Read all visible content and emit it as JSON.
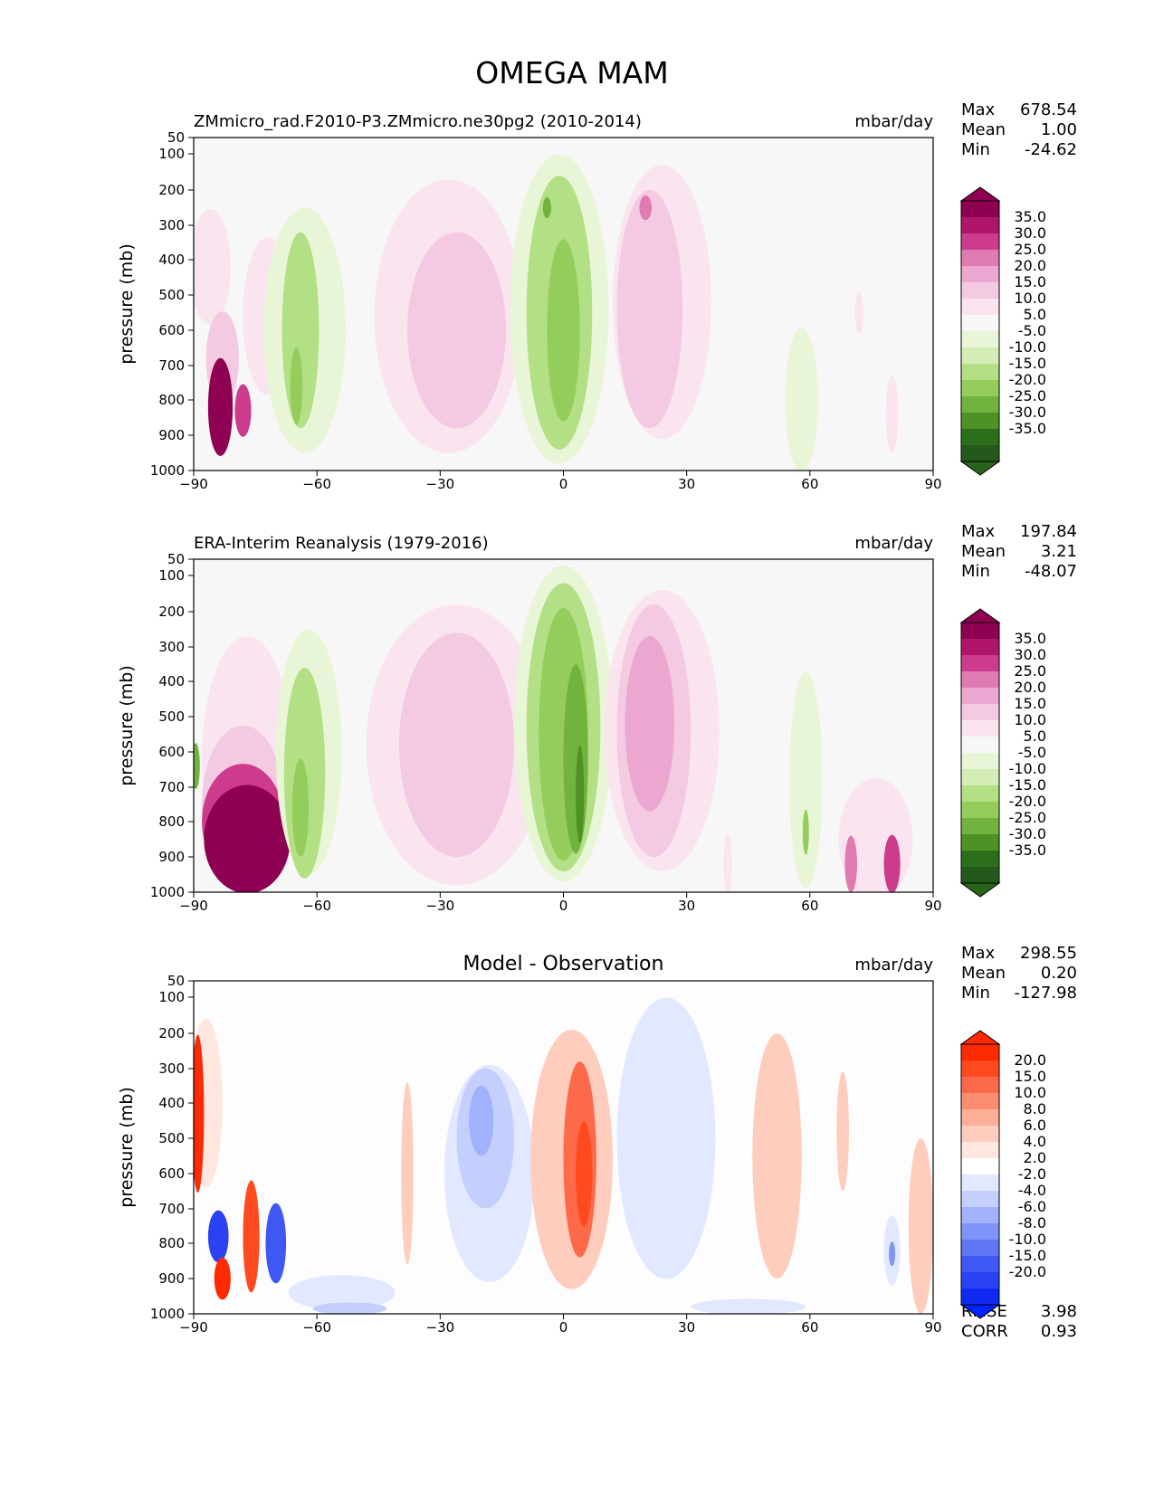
{
  "figure_title": "OMEGA MAM",
  "chart_data": [
    {
      "type": "heatmap",
      "title_left": "ZMmicro_rad.F2010-P3.ZMmicro.ne30pg2 (2010-2014)",
      "title_center": "",
      "units": "mbar/day",
      "ylabel": "pressure (mb)",
      "xlim": [
        -90,
        90
      ],
      "x_ticks": [
        "−90",
        "−60",
        "−30",
        "0",
        "30",
        "60",
        "90"
      ],
      "x_tick_values": [
        -90,
        -60,
        -30,
        0,
        30,
        60,
        90
      ],
      "y_ticks": [
        "50",
        "100",
        "200",
        "300",
        "400",
        "500",
        "600",
        "700",
        "800",
        "900",
        "1000"
      ],
      "y_tick_values": [
        50,
        100,
        200,
        300,
        400,
        500,
        600,
        700,
        800,
        900,
        1000
      ],
      "stats": {
        "max_label": "Max",
        "max": "678.54",
        "mean_label": "Mean",
        "mean": "1.00",
        "min_label": "Min",
        "min": "-24.62"
      },
      "colorbar": {
        "labels": [
          "35.0",
          "30.0",
          "25.0",
          "20.0",
          "15.0",
          "10.0",
          "5.0",
          "-5.0",
          "-10.0",
          "-15.0",
          "-20.0",
          "-25.0",
          "-30.0",
          "-35.0"
        ],
        "colors": [
          "#8e0152",
          "#b0156c",
          "#cd3c8c",
          "#e07bb2",
          "#eba7cf",
          "#f4c9e2",
          "#fae4f0",
          "#f7f7f7",
          "#e9f5d7",
          "#d4ecb5",
          "#b3df85",
          "#94cd5c",
          "#72b23e",
          "#4e9226",
          "#2d6e1b",
          "#23591a"
        ],
        "top_color": "#8e0152",
        "bottom_color": "#276419"
      },
      "contours": [
        {
          "color": "#fae4f0",
          "x": -86,
          "p": 420,
          "w": 10,
          "h": 330
        },
        {
          "color": "#fae4f0",
          "x": -72,
          "p": 560,
          "w": 12,
          "h": 450
        },
        {
          "color": "#f4c9e2",
          "x": -83,
          "p": 680,
          "w": 8,
          "h": 270
        },
        {
          "color": "#8e0152",
          "x": -83.5,
          "p": 820,
          "w": 6,
          "h": 280
        },
        {
          "color": "#cd3c8c",
          "x": -78,
          "p": 830,
          "w": 4,
          "h": 150
        },
        {
          "color": "#e9f5d7",
          "x": -63,
          "p": 600,
          "w": 20,
          "h": 700
        },
        {
          "color": "#b3df85",
          "x": -64,
          "p": 600,
          "w": 9,
          "h": 560
        },
        {
          "color": "#94cd5c",
          "x": -65,
          "p": 760,
          "w": 3,
          "h": 220
        },
        {
          "color": "#fae4f0",
          "x": -28,
          "p": 560,
          "w": 36,
          "h": 780
        },
        {
          "color": "#f4c9e2",
          "x": -26,
          "p": 600,
          "w": 24,
          "h": 560
        },
        {
          "color": "#e9f5d7",
          "x": -1,
          "p": 540,
          "w": 24,
          "h": 880
        },
        {
          "color": "#b3df85",
          "x": -1,
          "p": 550,
          "w": 16,
          "h": 780
        },
        {
          "color": "#94cd5c",
          "x": 0,
          "p": 600,
          "w": 8,
          "h": 520
        },
        {
          "color": "#72b23e",
          "x": -4,
          "p": 250,
          "w": 2,
          "h": 60
        },
        {
          "color": "#fae4f0",
          "x": 24,
          "p": 520,
          "w": 24,
          "h": 780
        },
        {
          "color": "#f4c9e2",
          "x": 21,
          "p": 540,
          "w": 16,
          "h": 680
        },
        {
          "color": "#e07bb2",
          "x": 20,
          "p": 250,
          "w": 3,
          "h": 70
        },
        {
          "color": "#e9f5d7",
          "x": 58,
          "p": 800,
          "w": 8,
          "h": 420
        },
        {
          "color": "#fae4f0",
          "x": 72,
          "p": 550,
          "w": 2,
          "h": 120
        },
        {
          "color": "#fae4f0",
          "x": 80,
          "p": 840,
          "w": 3,
          "h": 220
        }
      ]
    },
    {
      "type": "heatmap",
      "title_left": "ERA-Interim Reanalysis (1979-2016)",
      "title_center": "",
      "units": "mbar/day",
      "ylabel": "pressure (mb)",
      "xlim": [
        -90,
        90
      ],
      "x_ticks": [
        "−90",
        "−60",
        "−30",
        "0",
        "30",
        "60",
        "90"
      ],
      "x_tick_values": [
        -90,
        -60,
        -30,
        0,
        30,
        60,
        90
      ],
      "y_ticks": [
        "50",
        "100",
        "200",
        "300",
        "400",
        "500",
        "600",
        "700",
        "800",
        "900",
        "1000"
      ],
      "y_tick_values": [
        50,
        100,
        200,
        300,
        400,
        500,
        600,
        700,
        800,
        900,
        1000
      ],
      "stats": {
        "max_label": "Max",
        "max": "197.84",
        "mean_label": "Mean",
        "mean": "3.21",
        "min_label": "Min",
        "min": "-48.07"
      },
      "colorbar": {
        "labels": [
          "35.0",
          "30.0",
          "25.0",
          "20.0",
          "15.0",
          "10.0",
          "5.0",
          "-5.0",
          "-10.0",
          "-15.0",
          "-20.0",
          "-25.0",
          "-30.0",
          "-35.0"
        ],
        "colors": [
          "#8e0152",
          "#b0156c",
          "#cd3c8c",
          "#e07bb2",
          "#eba7cf",
          "#f4c9e2",
          "#fae4f0",
          "#f7f7f7",
          "#e9f5d7",
          "#d4ecb5",
          "#b3df85",
          "#94cd5c",
          "#72b23e",
          "#4e9226",
          "#2d6e1b",
          "#23591a"
        ],
        "top_color": "#8e0152",
        "bottom_color": "#276419"
      },
      "contours": [
        {
          "color": "#fae4f0",
          "x": -77,
          "p": 620,
          "w": 22,
          "h": 700
        },
        {
          "color": "#f4c9e2",
          "x": -78,
          "p": 750,
          "w": 20,
          "h": 450
        },
        {
          "color": "#cd3c8c",
          "x": -78,
          "p": 800,
          "w": 20,
          "h": 330
        },
        {
          "color": "#8e0152",
          "x": -77,
          "p": 850,
          "w": 21,
          "h": 320
        },
        {
          "color": "#72b23e",
          "x": -89.5,
          "p": 640,
          "w": 2,
          "h": 130
        },
        {
          "color": "#e9f5d7",
          "x": -62,
          "p": 600,
          "w": 16,
          "h": 700
        },
        {
          "color": "#b3df85",
          "x": -63,
          "p": 660,
          "w": 10,
          "h": 600
        },
        {
          "color": "#94cd5c",
          "x": -64,
          "p": 760,
          "w": 4,
          "h": 280
        },
        {
          "color": "#fae4f0",
          "x": -26,
          "p": 580,
          "w": 44,
          "h": 800
        },
        {
          "color": "#f4c9e2",
          "x": -26,
          "p": 580,
          "w": 28,
          "h": 640
        },
        {
          "color": "#e9f5d7",
          "x": 0,
          "p": 520,
          "w": 24,
          "h": 900
        },
        {
          "color": "#b3df85",
          "x": 0,
          "p": 530,
          "w": 18,
          "h": 820
        },
        {
          "color": "#94cd5c",
          "x": 0,
          "p": 550,
          "w": 12,
          "h": 720
        },
        {
          "color": "#72b23e",
          "x": 3,
          "p": 620,
          "w": 6,
          "h": 540
        },
        {
          "color": "#4e9226",
          "x": 4,
          "p": 720,
          "w": 2,
          "h": 280
        },
        {
          "color": "#fae4f0",
          "x": 24,
          "p": 540,
          "w": 28,
          "h": 800
        },
        {
          "color": "#f4c9e2",
          "x": 22,
          "p": 540,
          "w": 18,
          "h": 720
        },
        {
          "color": "#eba7cf",
          "x": 21,
          "p": 520,
          "w": 12,
          "h": 500
        },
        {
          "color": "#e9f5d7",
          "x": 59,
          "p": 680,
          "w": 8,
          "h": 620
        },
        {
          "color": "#94cd5c",
          "x": 59,
          "p": 830,
          "w": 1.5,
          "h": 130
        },
        {
          "color": "#fae4f0",
          "x": 40,
          "p": 920,
          "w": 2,
          "h": 180
        },
        {
          "color": "#fae4f0",
          "x": 76,
          "p": 850,
          "w": 18,
          "h": 400
        },
        {
          "color": "#e07bb2",
          "x": 70,
          "p": 920,
          "w": 3,
          "h": 160
        },
        {
          "color": "#cd3c8c",
          "x": 80,
          "p": 920,
          "w": 4,
          "h": 170
        }
      ]
    },
    {
      "type": "heatmap",
      "title_left": "",
      "title_center": "Model - Observation",
      "units": "mbar/day",
      "ylabel": "pressure (mb)",
      "xlim": [
        -90,
        90
      ],
      "x_ticks": [
        "−90",
        "−60",
        "−30",
        "0",
        "30",
        "60",
        "90"
      ],
      "x_tick_values": [
        -90,
        -60,
        -30,
        0,
        30,
        60,
        90
      ],
      "y_ticks": [
        "50",
        "100",
        "200",
        "300",
        "400",
        "500",
        "600",
        "700",
        "800",
        "900",
        "1000"
      ],
      "y_tick_values": [
        50,
        100,
        200,
        300,
        400,
        500,
        600,
        700,
        800,
        900,
        1000
      ],
      "stats": {
        "max_label": "Max",
        "max": "298.55",
        "mean_label": "Mean",
        "mean": "0.20",
        "min_label": "Min",
        "min": "-127.98"
      },
      "extra_stats": {
        "rmse_label": "RMSE",
        "rmse": "3.98",
        "corr_label": "CORR",
        "corr": "0.93"
      },
      "colorbar": {
        "labels": [
          "20.0",
          "15.0",
          "10.0",
          "8.0",
          "6.0",
          "4.0",
          "2.0",
          "-2.0",
          "-4.0",
          "-6.0",
          "-8.0",
          "-10.0",
          "-15.0",
          "-20.0"
        ],
        "colors": [
          "#ff2a00",
          "#ff4a1f",
          "#fd6a4a",
          "#fc8c70",
          "#fdae96",
          "#fecdbe",
          "#ffe7df",
          "#ffffff",
          "#e2e8ff",
          "#c4cffd",
          "#a2b1fb",
          "#8093f8",
          "#6076f5",
          "#4058f3",
          "#2a42f2",
          "#1029f0"
        ],
        "top_color": "#ff2a00",
        "bottom_color": "#0022ff"
      },
      "contours": [
        {
          "color": "#ffe7df",
          "x": -87,
          "p": 400,
          "w": 8,
          "h": 480
        },
        {
          "color": "#ff2a00",
          "x": -89,
          "p": 430,
          "w": 3,
          "h": 450
        },
        {
          "color": "#2a42f2",
          "x": -84,
          "p": 780,
          "w": 5,
          "h": 150
        },
        {
          "color": "#ff2a00",
          "x": -83,
          "p": 900,
          "w": 4,
          "h": 120
        },
        {
          "color": "#ff4a1f",
          "x": -76,
          "p": 780,
          "w": 4,
          "h": 320
        },
        {
          "color": "#4058f3",
          "x": -70,
          "p": 800,
          "w": 5,
          "h": 230
        },
        {
          "color": "#e2e8ff",
          "x": -54,
          "p": 940,
          "w": 26,
          "h": 100
        },
        {
          "color": "#c4cffd",
          "x": -52,
          "p": 985,
          "w": 18,
          "h": 40
        },
        {
          "color": "#fecdbe",
          "x": -38,
          "p": 600,
          "w": 3,
          "h": 520
        },
        {
          "color": "#e2e8ff",
          "x": -18,
          "p": 600,
          "w": 22,
          "h": 620
        },
        {
          "color": "#c4cffd",
          "x": -19,
          "p": 500,
          "w": 14,
          "h": 400
        },
        {
          "color": "#a2b1fb",
          "x": -20,
          "p": 450,
          "w": 6,
          "h": 200
        },
        {
          "color": "#fecdbe",
          "x": 2,
          "p": 560,
          "w": 20,
          "h": 740
        },
        {
          "color": "#fd6a4a",
          "x": 4,
          "p": 560,
          "w": 8,
          "h": 560
        },
        {
          "color": "#ff4a1f",
          "x": 5,
          "p": 600,
          "w": 4,
          "h": 300
        },
        {
          "color": "#e2e8ff",
          "x": 25,
          "p": 500,
          "w": 24,
          "h": 800
        },
        {
          "color": "#fecdbe",
          "x": 52,
          "p": 550,
          "w": 12,
          "h": 700
        },
        {
          "color": "#fecdbe",
          "x": 87,
          "p": 750,
          "w": 6,
          "h": 500
        },
        {
          "color": "#e2e8ff",
          "x": 80,
          "p": 820,
          "w": 4,
          "h": 200
        },
        {
          "color": "#8093f8",
          "x": 80,
          "p": 830,
          "w": 1.5,
          "h": 70
        },
        {
          "color": "#e2e8ff",
          "x": 45,
          "p": 980,
          "w": 28,
          "h": 50
        },
        {
          "color": "#fecdbe",
          "x": 68,
          "p": 480,
          "w": 3,
          "h": 340
        }
      ]
    }
  ]
}
